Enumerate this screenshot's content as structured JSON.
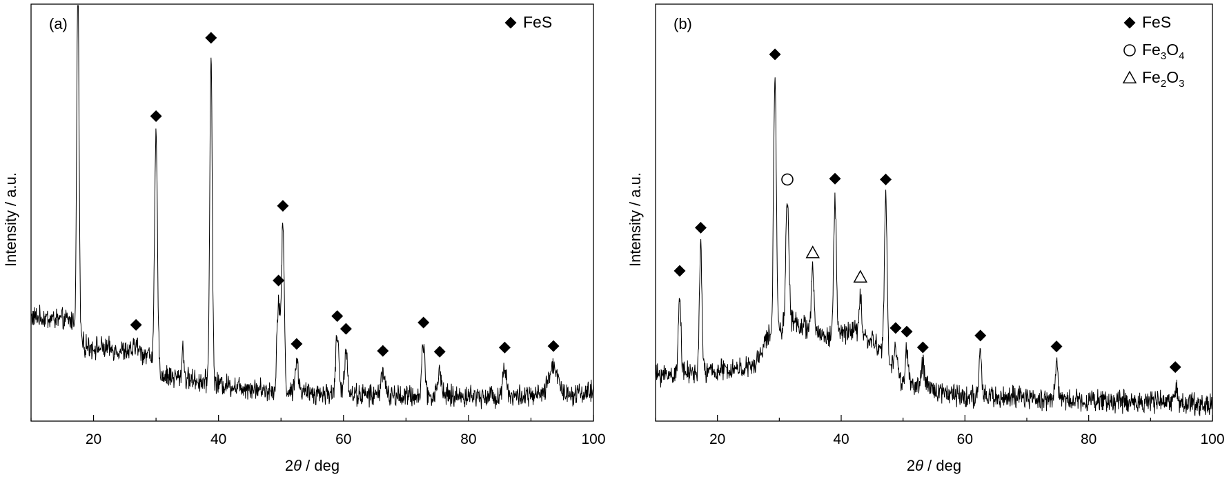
{
  "chart_data": [
    {
      "type": "line",
      "panel_label": "(a)",
      "xlabel_prefix": "2",
      "xlabel_theta": "θ",
      "xlabel_suffix": " / deg",
      "ylabel": "Intensity / a.u.",
      "xlim": [
        10,
        100
      ],
      "xticks": [
        "20",
        "40",
        "60",
        "80",
        "100"
      ],
      "yticks_shown": false,
      "legend_position": "top-right",
      "legend": [
        {
          "symbol": "filled-diamond",
          "main": "FeS",
          "parts": [
            {
              "t": "FeS",
              "sub": false
            }
          ]
        }
      ],
      "baseline": {
        "segments": [
          [
            10,
            0.25
          ],
          [
            17,
            0.24
          ],
          [
            18.5,
            0.18
          ],
          [
            24,
            0.17
          ],
          [
            29,
            0.16
          ],
          [
            31,
            0.11
          ],
          [
            40,
            0.09
          ],
          [
            50,
            0.07
          ],
          [
            70,
            0.06
          ],
          [
            90,
            0.06
          ],
          [
            100,
            0.07
          ]
        ],
        "noise": 0.04
      },
      "peaks": [
        {
          "x": 17.5,
          "height": 0.85,
          "width": 0.18,
          "marker": "filled-diamond"
        },
        {
          "x": 26.8,
          "height": 0.02,
          "width": 0.3,
          "marker": "filled-diamond"
        },
        {
          "x": 30.0,
          "height": 0.55,
          "width": 0.22,
          "marker": "filled-diamond"
        },
        {
          "x": 34.3,
          "height": 0.08,
          "width": 0.15,
          "marker": null
        },
        {
          "x": 38.8,
          "height": 0.78,
          "width": 0.2,
          "marker": "filled-diamond"
        },
        {
          "x": 49.6,
          "height": 0.22,
          "width": 0.25,
          "marker": "filled-diamond"
        },
        {
          "x": 50.3,
          "height": 0.4,
          "width": 0.22,
          "marker": "filled-diamond"
        },
        {
          "x": 52.5,
          "height": 0.07,
          "width": 0.3,
          "marker": "filled-diamond"
        },
        {
          "x": 59.0,
          "height": 0.14,
          "width": 0.25,
          "marker": "filled-diamond"
        },
        {
          "x": 60.4,
          "height": 0.11,
          "width": 0.25,
          "marker": "filled-diamond"
        },
        {
          "x": 66.3,
          "height": 0.06,
          "width": 0.3,
          "marker": "filled-diamond"
        },
        {
          "x": 72.8,
          "height": 0.13,
          "width": 0.25,
          "marker": "filled-diamond"
        },
        {
          "x": 75.4,
          "height": 0.06,
          "width": 0.3,
          "marker": "filled-diamond"
        },
        {
          "x": 85.8,
          "height": 0.07,
          "width": 0.3,
          "marker": "filled-diamond"
        },
        {
          "x": 93.6,
          "height": 0.07,
          "width": 0.7,
          "marker": "filled-diamond"
        }
      ]
    },
    {
      "type": "line",
      "panel_label": "(b)",
      "xlabel_prefix": "2",
      "xlabel_theta": "θ",
      "xlabel_suffix": " / deg",
      "ylabel": "Intensity / a.u.",
      "xlim": [
        10,
        100
      ],
      "xticks": [
        "20",
        "40",
        "60",
        "80",
        "100"
      ],
      "yticks_shown": false,
      "legend_position": "top-right",
      "legend": [
        {
          "symbol": "filled-diamond",
          "main": "FeS",
          "parts": [
            {
              "t": "FeS",
              "sub": false
            }
          ]
        },
        {
          "symbol": "open-circle",
          "main": "Fe3O4",
          "parts": [
            {
              "t": "Fe",
              "sub": false
            },
            {
              "t": "3",
              "sub": true
            },
            {
              "t": "O",
              "sub": false
            },
            {
              "t": "4",
              "sub": true
            }
          ]
        },
        {
          "symbol": "open-triangle",
          "main": "Fe2O3",
          "parts": [
            {
              "t": "Fe",
              "sub": false
            },
            {
              "t": "2",
              "sub": true
            },
            {
              "t": "O",
              "sub": false
            },
            {
              "t": "3",
              "sub": true
            }
          ]
        }
      ],
      "baseline": {
        "segments": [
          [
            10,
            0.11
          ],
          [
            20,
            0.12
          ],
          [
            26,
            0.13
          ],
          [
            28,
            0.2
          ],
          [
            32,
            0.24
          ],
          [
            38,
            0.2
          ],
          [
            42,
            0.22
          ],
          [
            46,
            0.18
          ],
          [
            50,
            0.09
          ],
          [
            60,
            0.06
          ],
          [
            80,
            0.05
          ],
          [
            100,
            0.04
          ]
        ],
        "noise": 0.04
      },
      "peaks": [
        {
          "x": 13.9,
          "height": 0.2,
          "width": 0.2,
          "marker": "filled-diamond"
        },
        {
          "x": 17.3,
          "height": 0.3,
          "width": 0.2,
          "marker": "filled-diamond"
        },
        {
          "x": 29.3,
          "height": 0.62,
          "width": 0.22,
          "marker": "filled-diamond"
        },
        {
          "x": 31.3,
          "height": 0.3,
          "width": 0.25,
          "marker": "open-circle"
        },
        {
          "x": 35.4,
          "height": 0.14,
          "width": 0.22,
          "marker": "open-triangle"
        },
        {
          "x": 39.0,
          "height": 0.33,
          "width": 0.22,
          "marker": "filled-diamond"
        },
        {
          "x": 43.1,
          "height": 0.09,
          "width": 0.2,
          "marker": "open-triangle"
        },
        {
          "x": 47.2,
          "height": 0.38,
          "width": 0.22,
          "marker": "filled-diamond"
        },
        {
          "x": 48.8,
          "height": 0.06,
          "width": 0.25,
          "marker": "filled-diamond"
        },
        {
          "x": 50.6,
          "height": 0.08,
          "width": 0.25,
          "marker": "filled-diamond"
        },
        {
          "x": 53.2,
          "height": 0.05,
          "width": 0.3,
          "marker": "filled-diamond"
        },
        {
          "x": 62.5,
          "height": 0.1,
          "width": 0.2,
          "marker": "filled-diamond"
        },
        {
          "x": 74.8,
          "height": 0.08,
          "width": 0.25,
          "marker": "filled-diamond"
        },
        {
          "x": 94.0,
          "height": 0.04,
          "width": 0.3,
          "marker": "filled-diamond"
        }
      ]
    }
  ]
}
